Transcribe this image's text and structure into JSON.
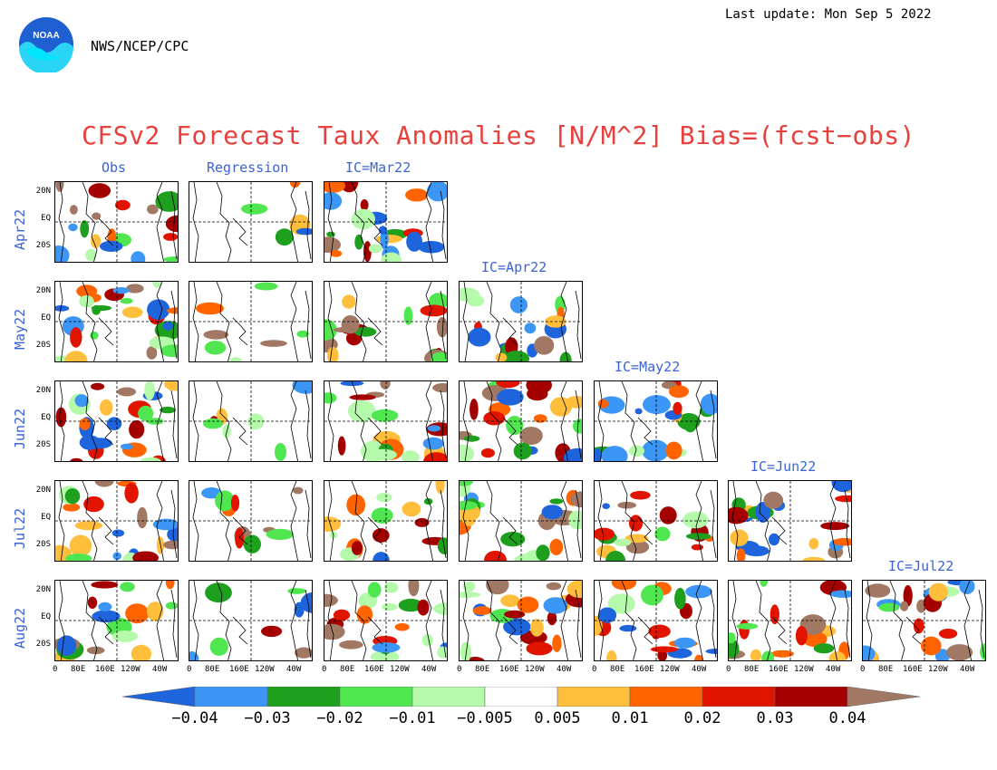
{
  "header": {
    "last_update": "Last update: Mon Sep 5 2022",
    "agency": "NWS/NCEP/CPC",
    "logo_text": "NOAA"
  },
  "chart_data": {
    "type": "heatmap",
    "title": "CFSv2 Forecast Taux Anomalies [N/M^2] Bias=(fcst−obs)",
    "column_labels": [
      "Obs",
      "Regression",
      "IC=Mar22",
      "IC=Apr22",
      "IC=May22",
      "IC=Jun22",
      "IC=Jul22"
    ],
    "row_labels": [
      "Apr22",
      "May22",
      "Jun22",
      "Jul22",
      "Aug22"
    ],
    "lat_ticks": [
      "20N",
      "EQ",
      "20S"
    ],
    "lon_ticks": [
      "0",
      "80E",
      "160E",
      "120W",
      "40W"
    ],
    "colorbar": {
      "levels": [
        "−0.04",
        "−0.03",
        "−0.02",
        "−0.01",
        "−0.005",
        "0.005",
        "0.01",
        "0.02",
        "0.03",
        "0.04"
      ],
      "colors": [
        "#1e64dc",
        "#3c96f5",
        "#1ea01e",
        "#50e650",
        "#b4faaa",
        "#ffffff",
        "#ffbe3c",
        "#ff6400",
        "#e11400",
        "#a50000",
        "#a07864"
      ]
    },
    "panels_present": [
      [
        true,
        true,
        true,
        false,
        false,
        false,
        false
      ],
      [
        true,
        true,
        true,
        true,
        false,
        false,
        false
      ],
      [
        true,
        true,
        true,
        true,
        true,
        false,
        false
      ],
      [
        true,
        true,
        true,
        true,
        true,
        true,
        false
      ],
      [
        true,
        true,
        true,
        true,
        true,
        true,
        true
      ]
    ]
  }
}
